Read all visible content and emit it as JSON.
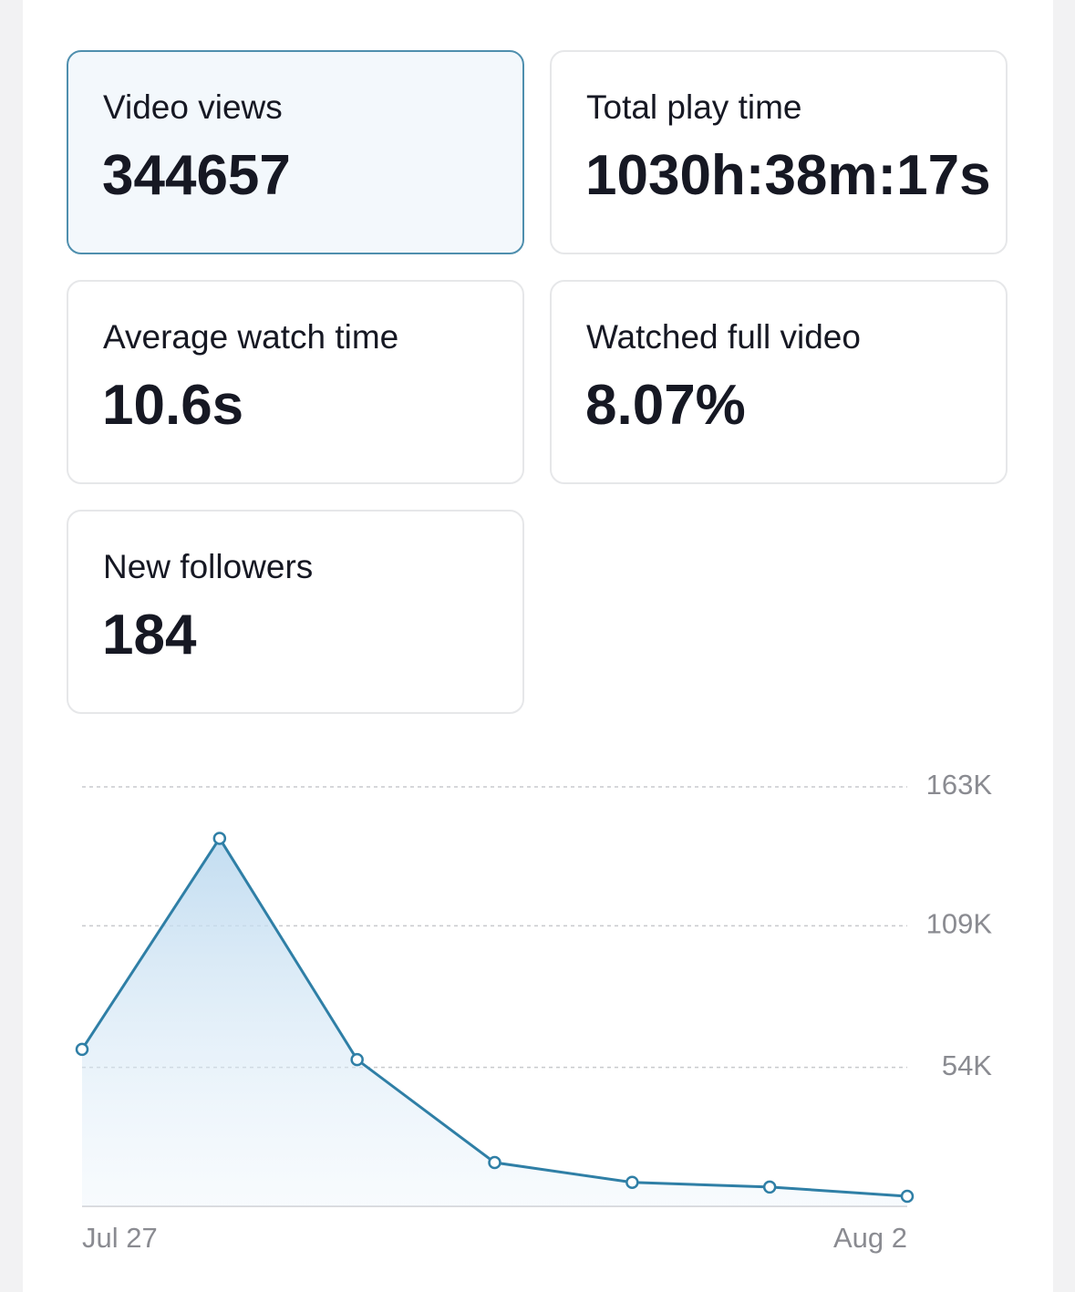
{
  "cards": [
    {
      "label": "Video views",
      "value": "344657"
    },
    {
      "label": "Total play time",
      "value": "1030h:38m:17s"
    },
    {
      "label": "Average watch time",
      "value": "10.6s"
    },
    {
      "label": "Watched full video",
      "value": "8.07%"
    },
    {
      "label": "New followers",
      "value": "184"
    }
  ],
  "chart_data": {
    "type": "line",
    "categories": [
      "Jul 27",
      null,
      null,
      null,
      null,
      null,
      "Aug 2"
    ],
    "values": [
      61000,
      143000,
      57000,
      17000,
      9300,
      7500,
      3900
    ],
    "color": "#2f7fa6",
    "ylim": [
      0,
      163000
    ],
    "yticks": [
      {
        "value": 54000,
        "label": "54K"
      },
      {
        "value": 109000,
        "label": "109K"
      },
      {
        "value": 163000,
        "label": "163K"
      }
    ],
    "grid": true
  }
}
